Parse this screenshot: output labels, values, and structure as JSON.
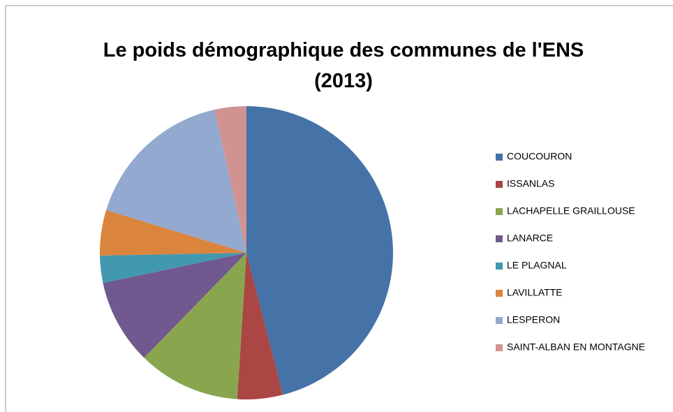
{
  "chart_data": {
    "type": "pie",
    "title": "Le poids démographique des communes de l'ENS (2013)",
    "categories": [
      "COUCOURON",
      "ISSANLAS",
      "LACHAPELLE GRAILLOUSE",
      "LANARCE",
      "LE PLAGNAL",
      "LAVILLATTE",
      "LESPERON",
      "SAINT-ALBAN EN MONTAGNE"
    ],
    "values": [
      46,
      5,
      11.3,
      9.4,
      3,
      5,
      16.8,
      3.5
    ],
    "colors": [
      "#4572a7",
      "#aa4643",
      "#89a54e",
      "#71588f",
      "#4198af",
      "#db843d",
      "#93a9cf",
      "#d19392"
    ],
    "legend": "right"
  }
}
